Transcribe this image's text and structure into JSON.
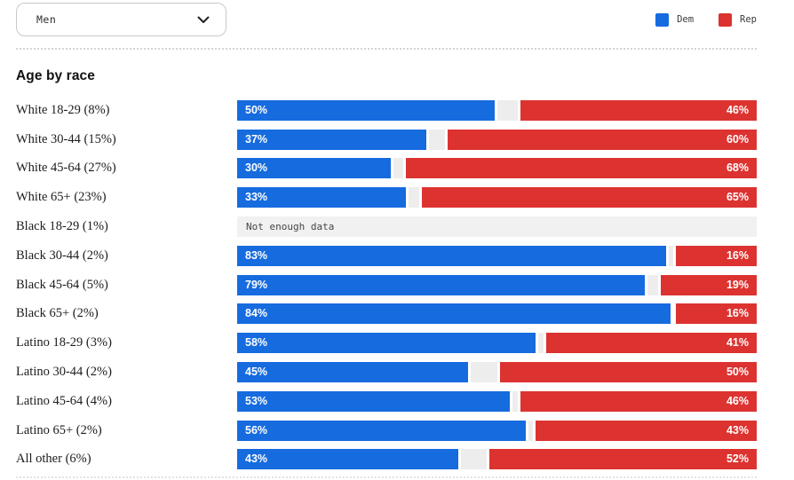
{
  "filter": {
    "value": "Men"
  },
  "section": {
    "title": "Age by race"
  },
  "chart_data": {
    "type": "bar",
    "orientation": "horizontal",
    "title": "Age by race",
    "legend_position": "top-right",
    "xlim": [
      0,
      100
    ],
    "value_suffix": "%",
    "colors": {
      "dem": "#166bdf",
      "rep": "#dc3330",
      "track": "#ededed"
    },
    "categories": [
      "White 18-29 (8%)",
      "White 30-44 (15%)",
      "White 45-64 (27%)",
      "White 65+ (23%)",
      "Black 18-29 (1%)",
      "Black 30-44 (2%)",
      "Black 45-64 (5%)",
      "Black 65+ (2%)",
      "Latino 18-29 (3%)",
      "Latino 30-44 (2%)",
      "Latino 45-64 (4%)",
      "Latino 65+ (2%)",
      "All other (6%)"
    ],
    "series": [
      {
        "name": "Dem",
        "color": "#166bdf",
        "values": [
          50,
          37,
          30,
          33,
          null,
          83,
          79,
          84,
          58,
          45,
          53,
          56,
          43
        ]
      },
      {
        "name": "Rep",
        "color": "#dc3330",
        "values": [
          46,
          60,
          68,
          65,
          null,
          16,
          19,
          16,
          41,
          50,
          46,
          43,
          52
        ]
      }
    ],
    "no_data_note": "Not enough data"
  }
}
